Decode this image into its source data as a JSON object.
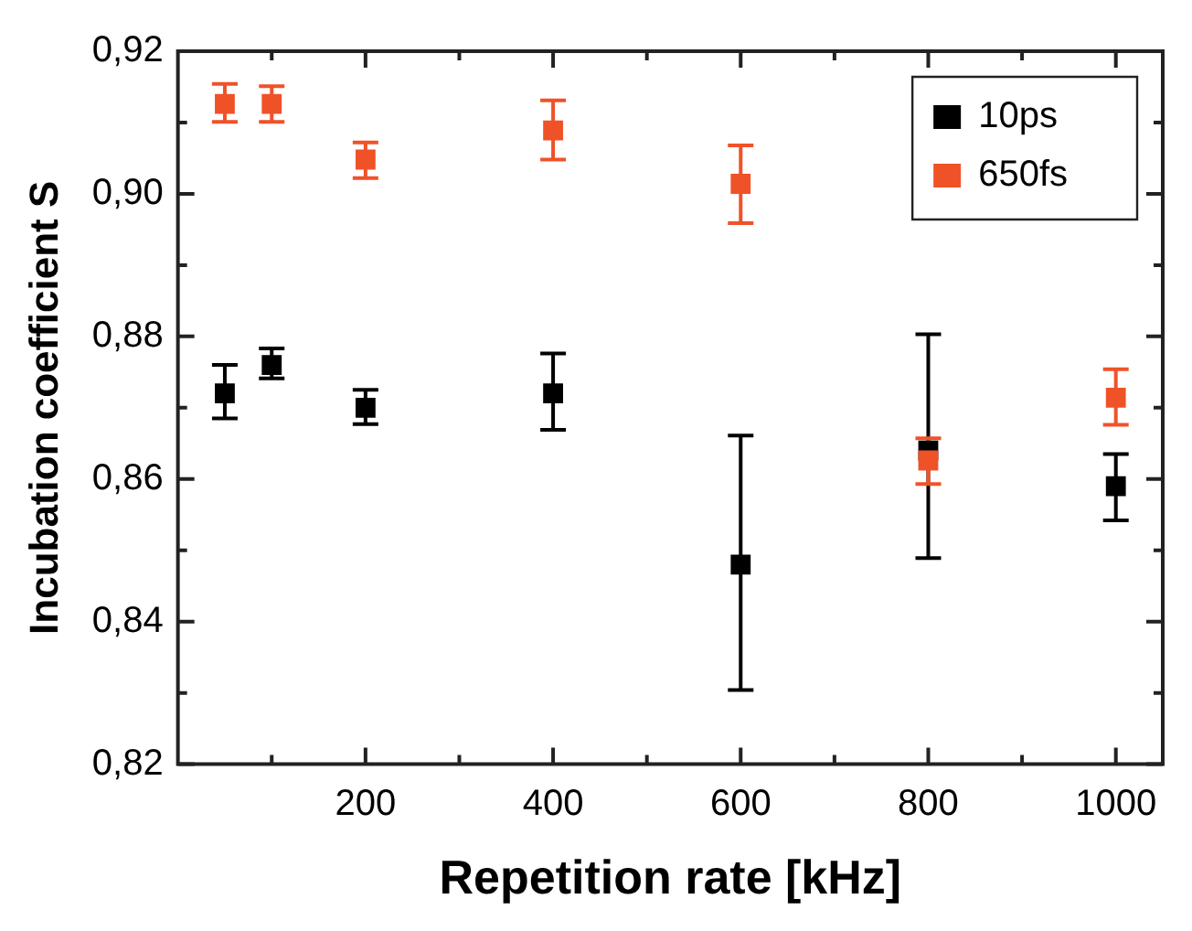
{
  "chart_data": {
    "type": "scatter",
    "xlabel": "Repetition rate [kHz]",
    "ylabel": "Incubation coefficient S",
    "x": [
      50,
      100,
      200,
      400,
      600,
      800,
      1000
    ],
    "series": [
      {
        "name": "10ps",
        "color": "#000000",
        "values": [
          0.872,
          0.876,
          0.87,
          0.872,
          0.848,
          0.864,
          0.859
        ],
        "errors": [
          [
            0.8685,
            0.876
          ],
          [
            0.8741,
            0.8783
          ],
          [
            0.8677,
            0.8725
          ],
          [
            0.8669,
            0.8776
          ],
          [
            0.8304,
            0.8661
          ],
          [
            0.8489,
            0.8803
          ],
          [
            0.8542,
            0.8635
          ]
        ]
      },
      {
        "name": "650fs",
        "color": "#f05228",
        "values": [
          0.9126,
          0.9126,
          0.9048,
          0.9089,
          0.9014,
          0.8626,
          0.8714
        ],
        "errors": [
          [
            0.9101,
            0.9154
          ],
          [
            0.9101,
            0.9151
          ],
          [
            0.9022,
            0.9072
          ],
          [
            0.9048,
            0.9131
          ],
          [
            0.8959,
            0.9068
          ],
          [
            0.8593,
            0.8657
          ],
          [
            0.8676,
            0.8754
          ]
        ]
      }
    ],
    "xlim": [
      0,
      1050
    ],
    "xticks": [
      {
        "value": 100,
        "label": null
      },
      200,
      {
        "value": 300,
        "label": null
      },
      400,
      {
        "value": 500,
        "label": null
      },
      600,
      {
        "value": 700,
        "label": null
      },
      800,
      {
        "value": 900,
        "label": null
      },
      1000
    ],
    "ylim": [
      0.82,
      0.92
    ],
    "yticks": [
      {
        "value": 0.82,
        "label": "0,82"
      },
      {
        "value": 0.83,
        "label": null
      },
      {
        "value": 0.84,
        "label": "0,84"
      },
      {
        "value": 0.85,
        "label": null
      },
      {
        "value": 0.86,
        "label": "0,86"
      },
      {
        "value": 0.87,
        "label": null
      },
      {
        "value": 0.88,
        "label": "0,88"
      },
      {
        "value": 0.89,
        "label": null
      },
      {
        "value": 0.9,
        "label": "0,90"
      },
      {
        "value": 0.91,
        "label": null
      },
      {
        "value": 0.92,
        "label": "0,92"
      }
    ],
    "grid": false,
    "legend": "top right",
    "marker": "square"
  }
}
